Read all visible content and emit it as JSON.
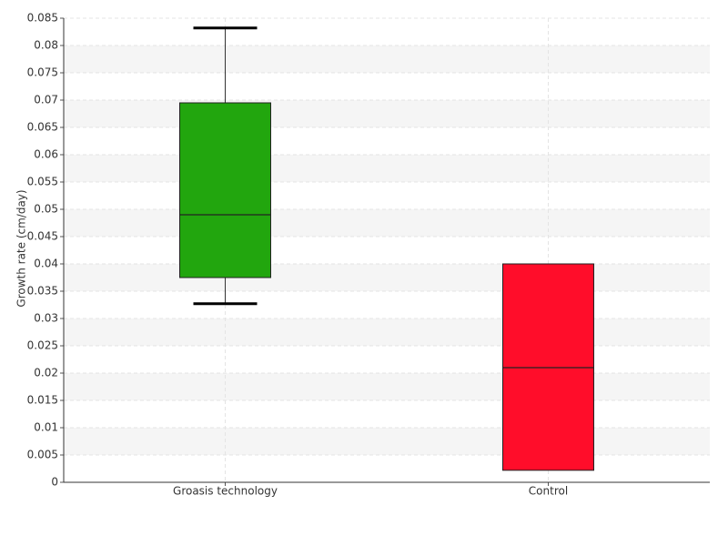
{
  "chart_data": {
    "type": "box",
    "ylabel": "Growth rate (cm/day)",
    "categories": [
      "Groasis technology",
      "Control"
    ],
    "low": [
      0.0327,
      0.0022
    ],
    "q1": [
      0.0375,
      0.0022
    ],
    "median": [
      0.049,
      0.021
    ],
    "q3": [
      0.0695,
      0.04
    ],
    "high": [
      0.0832,
      0.04
    ],
    "colors": [
      "#22a60e",
      "#ff0d2a"
    ],
    "ylim": [
      0,
      0.085
    ],
    "yticks": [
      0,
      0.005,
      0.01,
      0.015,
      0.02,
      0.025,
      0.03,
      0.035,
      0.04,
      0.045,
      0.05,
      0.055,
      0.06,
      0.065,
      0.07,
      0.075,
      0.08,
      0.085
    ],
    "grid": true
  }
}
